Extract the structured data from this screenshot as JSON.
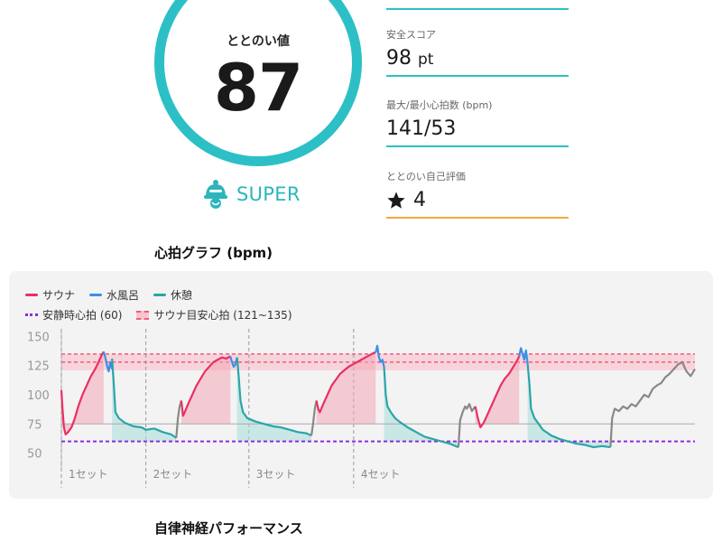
{
  "score": {
    "label": "ととのい値",
    "value": "87"
  },
  "rank": {
    "label": "SUPER",
    "icon": "sauna-hat-icon",
    "color": "#2cb5bd"
  },
  "stats": [
    {
      "label": "安全スコア",
      "value": "98",
      "unit": "pt"
    },
    {
      "label": "最大/最小心拍数 (bpm)",
      "value": "141/53",
      "unit": ""
    },
    {
      "label": "ととのい自己評価",
      "value": "4",
      "unit": "",
      "icon": "star-icon"
    }
  ],
  "sections": {
    "heart_rate": "心拍グラフ (bpm)",
    "autonomic": "自律神経パフォーマンス"
  },
  "legend": {
    "sauna": "サウナ",
    "cold_bath": "水風呂",
    "rest": "休憩",
    "resting_hr": "安静時心拍 (60)",
    "target_band": "サウナ目安心拍 (121~135)"
  },
  "colors": {
    "sauna": "#ea2f62",
    "cold_bath": "#3b8fe8",
    "rest": "#2aa5a8",
    "idle": "#888888",
    "resting": "#8a2be2",
    "band": "#f6c6cf"
  },
  "chart_data": {
    "type": "line",
    "ylim": [
      45,
      155
    ],
    "yticks": [
      50,
      75,
      100,
      125,
      150
    ],
    "reference_lines": [
      {
        "name": "安静時心拍 (60)",
        "y": 60
      },
      {
        "name": "",
        "y": 75
      }
    ],
    "band": {
      "name": "サウナ目安心拍 (121~135)",
      "range": [
        121,
        135
      ]
    },
    "sets": [
      {
        "label": "1セット",
        "start": 0
      },
      {
        "label": "2セット",
        "start": 100
      },
      {
        "label": "3セット",
        "start": 222
      },
      {
        "label": "4セット",
        "start": 346
      }
    ],
    "x_end": 490,
    "segments": [
      {
        "type": "sauna",
        "x": [
          0,
          1,
          3,
          5,
          8,
          12,
          16,
          20,
          25,
          30,
          35,
          40,
          44,
          47,
          50
        ],
        "y": [
          104,
          92,
          72,
          66,
          68,
          72,
          80,
          90,
          100,
          108,
          116,
          122,
          128,
          133,
          137
        ]
      },
      {
        "type": "cold_bath",
        "x": [
          50,
          52,
          54,
          56,
          58,
          60
        ],
        "y": [
          137,
          132,
          125,
          120,
          128,
          122
        ]
      },
      {
        "type": "rest",
        "x": [
          60,
          62,
          64,
          68,
          75,
          85,
          95,
          100,
          110,
          120,
          130,
          136
        ],
        "y": [
          131,
          110,
          85,
          80,
          76,
          73,
          72,
          70,
          71,
          68,
          66,
          63
        ]
      },
      {
        "type": "idle",
        "x": [
          136,
          138,
          140,
          142
        ],
        "y": [
          63,
          80,
          90,
          95
        ]
      },
      {
        "type": "sauna",
        "x": [
          142,
          144,
          146,
          150,
          155,
          160,
          165,
          170,
          175,
          180,
          185,
          190,
          195,
          200
        ],
        "y": [
          95,
          82,
          85,
          92,
          100,
          108,
          114,
          120,
          124,
          128,
          130,
          132,
          131,
          133
        ]
      },
      {
        "type": "cold_bath",
        "x": [
          200,
          202,
          204,
          206,
          208
        ],
        "y": [
          133,
          128,
          124,
          126,
          132
        ]
      },
      {
        "type": "rest",
        "x": [
          208,
          210,
          212,
          215,
          220,
          230,
          240,
          250,
          260,
          270,
          280,
          290,
          296
        ],
        "y": [
          132,
          115,
          95,
          85,
          80,
          77,
          75,
          73,
          72,
          70,
          68,
          67,
          65
        ]
      },
      {
        "type": "idle",
        "x": [
          296,
          298,
          300,
          302
        ],
        "y": [
          65,
          75,
          88,
          95
        ]
      },
      {
        "type": "sauna",
        "x": [
          302,
          304,
          306,
          310,
          315,
          320,
          325,
          330,
          335,
          340,
          345,
          350,
          355,
          360,
          365,
          370,
          372
        ],
        "y": [
          95,
          88,
          85,
          92,
          100,
          108,
          113,
          118,
          121,
          124,
          126,
          128,
          130,
          132,
          134,
          136,
          136
        ]
      },
      {
        "type": "cold_bath",
        "x": [
          372,
          374,
          376,
          378,
          380,
          382
        ],
        "y": [
          136,
          142,
          132,
          128,
          130,
          124
        ]
      },
      {
        "type": "rest",
        "x": [
          382,
          384,
          386,
          390,
          395,
          400,
          410,
          420,
          430,
          440,
          450,
          460,
          470
        ],
        "y": [
          124,
          100,
          90,
          85,
          80,
          77,
          72,
          68,
          64,
          62,
          60,
          58,
          55
        ]
      },
      {
        "type": "idle",
        "x": [
          470,
          472,
          475,
          478,
          480,
          483,
          486,
          490
        ],
        "y": [
          55,
          78,
          85,
          90,
          88,
          92,
          86,
          90
        ]
      },
      {
        "type": "sauna",
        "x": [
          490,
          493,
          496,
          500,
          505,
          510,
          515,
          520,
          525,
          530,
          535,
          540,
          542
        ],
        "y": [
          90,
          80,
          72,
          76,
          84,
          92,
          100,
          108,
          114,
          118,
          124,
          130,
          133
        ]
      },
      {
        "type": "cold_bath",
        "x": [
          542,
          544,
          546,
          548,
          550,
          552
        ],
        "y": [
          133,
          140,
          135,
          130,
          138,
          126
        ]
      },
      {
        "type": "rest",
        "x": [
          552,
          554,
          556,
          560,
          565,
          570,
          580,
          590,
          600,
          610,
          620,
          630,
          640,
          650
        ],
        "y": [
          126,
          110,
          88,
          80,
          75,
          70,
          65,
          62,
          60,
          58,
          57,
          55,
          56,
          55
        ]
      },
      {
        "type": "idle",
        "x": [
          650,
          652,
          655,
          660,
          665,
          670,
          675,
          680,
          685,
          690,
          695,
          700,
          705,
          710,
          715,
          720,
          725,
          730,
          735,
          740,
          745,
          750
        ],
        "y": [
          55,
          80,
          88,
          86,
          90,
          88,
          92,
          90,
          95,
          100,
          98,
          105,
          108,
          110,
          115,
          118,
          122,
          126,
          128,
          120,
          116,
          122
        ]
      }
    ]
  }
}
